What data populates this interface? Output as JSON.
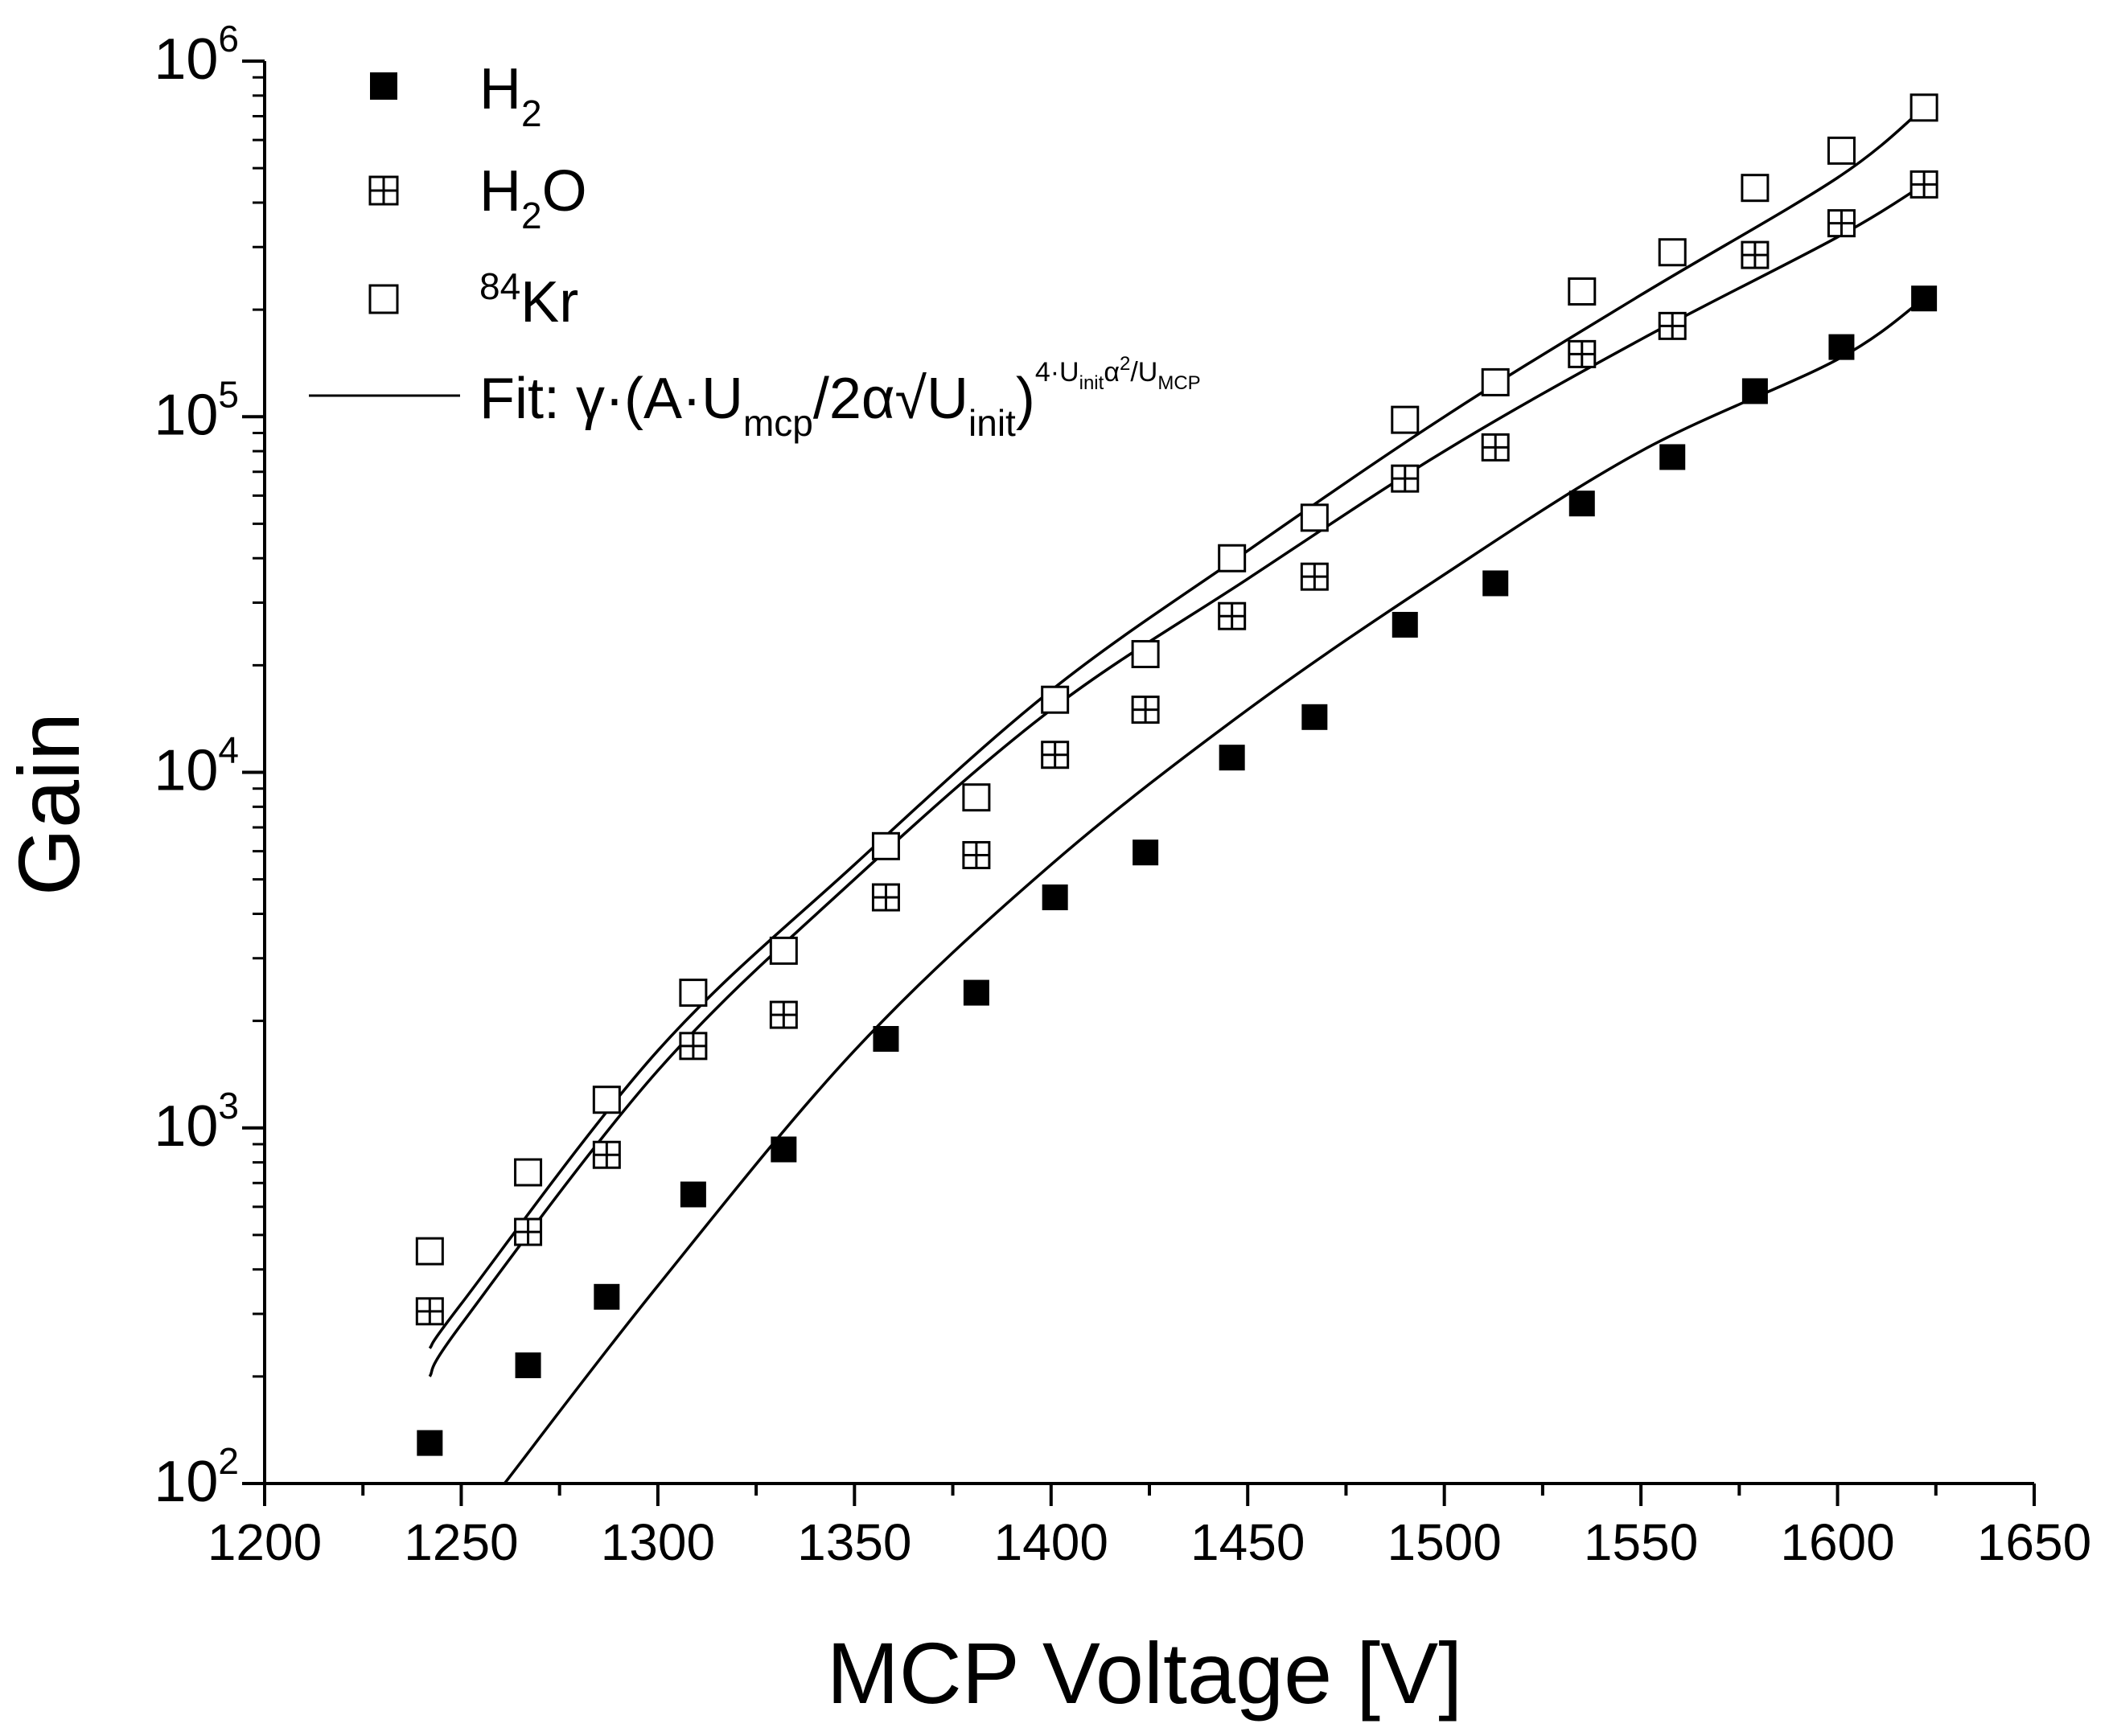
{
  "chart_data": {
    "type": "scatter",
    "xlabel": "MCP Voltage [V]",
    "ylabel": "Gain",
    "xlim": [
      1200,
      1650
    ],
    "ylim": [
      100,
      1000000
    ],
    "yscale": "log",
    "x_ticks": [
      "1200",
      "1250",
      "1300",
      "1350",
      "1400",
      "1450",
      "1500",
      "1550",
      "1600",
      "1650"
    ],
    "y_ticks": [
      {
        "base": "10",
        "exp": "2"
      },
      {
        "base": "10",
        "exp": "3"
      },
      {
        "base": "10",
        "exp": "4"
      },
      {
        "base": "10",
        "exp": "5"
      },
      {
        "base": "10",
        "exp": "6"
      }
    ],
    "grid": false,
    "legend_position": "top-left",
    "x": [
      1242,
      1267,
      1287,
      1309,
      1332,
      1358,
      1381,
      1401,
      1424,
      1446,
      1467,
      1490,
      1513,
      1535,
      1558,
      1579,
      1601,
      1622
    ],
    "series": [
      {
        "name": "H2",
        "marker": "filled-square",
        "values": [
          130,
          215,
          335,
          650,
          870,
          1780,
          2400,
          4450,
          5950,
          11000,
          14300,
          26000,
          34000,
          57000,
          77000,
          118000,
          157000,
          215000
        ],
        "fit": [
          [
            1261,
            100
          ],
          [
            1300,
            360
          ],
          [
            1350,
            1650
          ],
          [
            1400,
            5500
          ],
          [
            1450,
            15000
          ],
          [
            1500,
            36000
          ],
          [
            1550,
            80000
          ],
          [
            1600,
            145000
          ],
          [
            1622,
            215000
          ]
        ]
      },
      {
        "name": "H2O",
        "marker": "crossed-square",
        "values": [
          305,
          510,
          840,
          1700,
          2080,
          4450,
          5850,
          11200,
          15000,
          27500,
          35500,
          67000,
          82000,
          150000,
          180000,
          285000,
          350000,
          450000
        ],
        "fit": [
          [
            1242,
            200
          ],
          [
            1250,
            280
          ],
          [
            1300,
            1450
          ],
          [
            1350,
            5000
          ],
          [
            1400,
            15000
          ],
          [
            1450,
            35000
          ],
          [
            1500,
            80000
          ],
          [
            1550,
            165000
          ],
          [
            1600,
            320000
          ],
          [
            1622,
            450000
          ]
        ]
      },
      {
        "name": "84Kr",
        "marker": "open-square",
        "values": [
          450,
          750,
          1200,
          2400,
          3150,
          6200,
          8500,
          16000,
          21500,
          40000,
          52000,
          98000,
          125000,
          225000,
          290000,
          440000,
          560000,
          740000
        ],
        "fit": [
          [
            1242,
            240
          ],
          [
            1250,
            320
          ],
          [
            1300,
            1650
          ],
          [
            1350,
            5500
          ],
          [
            1400,
            17000
          ],
          [
            1450,
            42000
          ],
          [
            1500,
            100000
          ],
          [
            1550,
            220000
          ],
          [
            1600,
            470000
          ],
          [
            1622,
            740000
          ]
        ]
      }
    ],
    "legend": {
      "h2": {
        "main": "H",
        "sub": "2"
      },
      "h2o": {
        "main": "H",
        "sub": "2",
        "tail": "O"
      },
      "kr": {
        "sup": "84",
        "main": "Kr"
      },
      "fit": {
        "label": "Fit: γ·(A·U",
        "sub1": "mcp",
        "mid": "/2α√U",
        "sub2": "init",
        "close": ")",
        "exp_a": "4·U",
        "exp_sub1": "init",
        "exp_b": "α",
        "exp_sup": "2",
        "exp_c": "/U",
        "exp_sub2": "MCP"
      }
    }
  }
}
